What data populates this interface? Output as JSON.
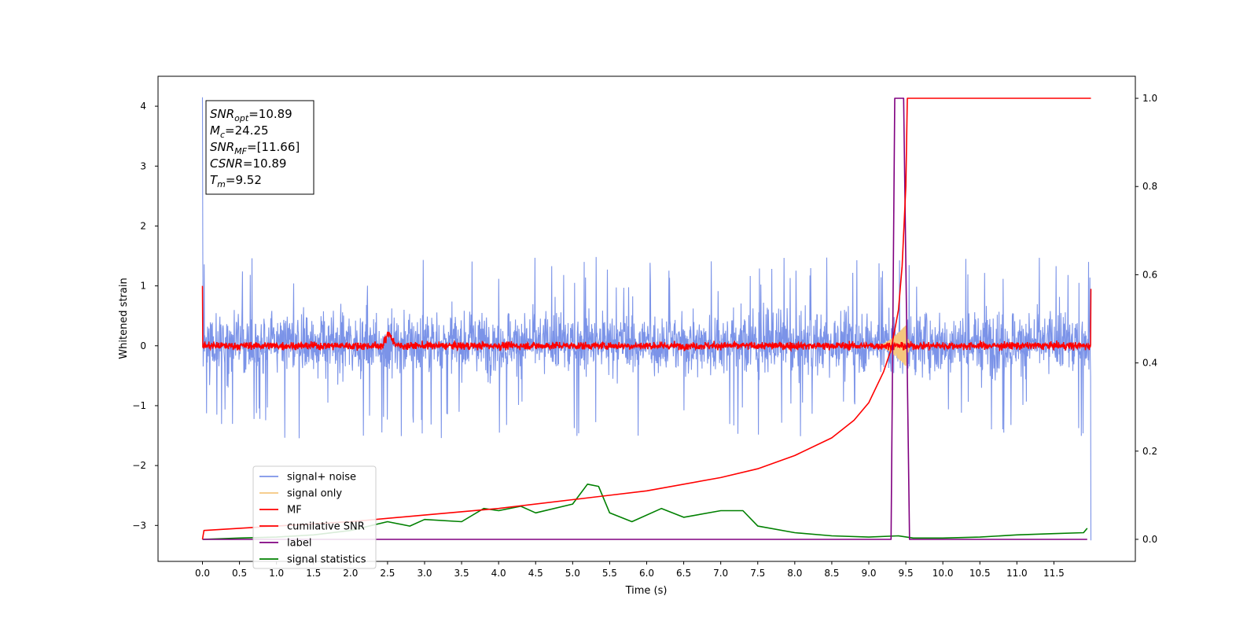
{
  "chart_data": {
    "type": "line",
    "xlabel": "Time (s)",
    "ylabel": "Whitened strain",
    "xlim": [
      -0.6,
      12.6
    ],
    "ylim": [
      -3.6,
      4.5
    ],
    "y2lim": [
      -0.05,
      1.05
    ],
    "x_ticks": [
      0.0,
      0.5,
      1.0,
      1.5,
      2.0,
      2.5,
      3.0,
      3.5,
      4.0,
      4.5,
      5.0,
      5.5,
      6.0,
      6.5,
      7.0,
      7.5,
      8.0,
      8.5,
      9.0,
      9.5,
      10.0,
      10.5,
      11.0,
      11.5
    ],
    "x_tick_labels": [
      "0.0",
      "0.5",
      "1.0",
      "1.5",
      "2.0",
      "2.5",
      "3.0",
      "3.5",
      "4.0",
      "4.5",
      "5.0",
      "5.5",
      "6.0",
      "6.5",
      "7.0",
      "7.5",
      "8.0",
      "8.5",
      "9.0",
      "9.5",
      "10.0",
      "10.5",
      "11.0",
      "11.5"
    ],
    "y_ticks": [
      -3,
      -2,
      -1,
      0,
      1,
      2,
      3,
      4
    ],
    "y_tick_labels": [
      "−3",
      "−2",
      "−1",
      "0",
      "1",
      "2",
      "3",
      "4"
    ],
    "y2_ticks": [
      0.0,
      0.2,
      0.4,
      0.6,
      0.8,
      1.0
    ],
    "y2_tick_labels": [
      "0.0",
      "0.2",
      "0.4",
      "0.6",
      "0.8",
      "1.0"
    ],
    "grid": false,
    "legend_position": "lower-left",
    "annotation": {
      "lines": [
        {
          "sym": "SNR",
          "sub": "opt",
          "val": "=10.89"
        },
        {
          "sym": "M",
          "sub": "c",
          "val": "=24.25"
        },
        {
          "sym": "SNR",
          "sub": "MF",
          "val": "=[11.66]"
        },
        {
          "sym": "CSNR",
          "sub": "",
          "val": "=10.89"
        },
        {
          "sym": "T",
          "sub": "m",
          "val": "=9.52"
        }
      ]
    },
    "series": [
      {
        "name": "signal+ noise",
        "color": "#7b93e8",
        "axis": "left",
        "style": "noise band",
        "x_range": [
          0.0,
          12.0
        ],
        "typical_range": [
          -0.75,
          0.85
        ],
        "peak_range": [
          -1.55,
          1.5
        ],
        "start_spike": 4.15,
        "end_value": -3.25
      },
      {
        "name": "signal only",
        "color": "#f5c77e",
        "axis": "left",
        "style": "chirp",
        "x_range": [
          9.1,
          9.55
        ],
        "max_amplitude": 0.42
      },
      {
        "name": "MF",
        "color": "#ff0000",
        "axis": "left",
        "style": "noise band",
        "x_range": [
          0.0,
          12.0
        ],
        "typical_range": [
          -0.1,
          0.1
        ],
        "peak_range": [
          -0.12,
          0.25
        ],
        "start_value": 1.0,
        "end_value": 0.95
      },
      {
        "name": "cumilative SNR",
        "color": "#ff0000",
        "axis": "right",
        "x": [
          0.0,
          0.02,
          1.0,
          2.0,
          3.0,
          4.0,
          5.0,
          6.0,
          7.0,
          7.5,
          8.0,
          8.5,
          8.8,
          9.0,
          9.2,
          9.3,
          9.4,
          9.45,
          9.5,
          9.52,
          12.0
        ],
        "values": [
          0.0,
          0.02,
          0.03,
          0.04,
          0.055,
          0.07,
          0.09,
          0.11,
          0.14,
          0.16,
          0.19,
          0.23,
          0.27,
          0.31,
          0.38,
          0.43,
          0.52,
          0.62,
          0.8,
          1.0,
          1.0
        ]
      },
      {
        "name": "label",
        "color": "#800080",
        "axis": "right",
        "x": [
          0.0,
          9.3,
          9.35,
          9.47,
          9.55,
          11.95
        ],
        "values": [
          0.0,
          0.0,
          1.0,
          1.0,
          0.0,
          0.0
        ]
      },
      {
        "name": "signal statistics",
        "color": "#008000",
        "axis": "right",
        "x": [
          0.0,
          0.5,
          1.0,
          1.5,
          2.0,
          2.5,
          2.8,
          3.0,
          3.5,
          3.8,
          4.0,
          4.3,
          4.5,
          5.0,
          5.2,
          5.35,
          5.5,
          5.8,
          6.2,
          6.5,
          7.0,
          7.3,
          7.5,
          8.0,
          8.5,
          9.0,
          9.4,
          9.6,
          10.0,
          10.5,
          11.0,
          11.5,
          11.9,
          11.95
        ],
        "values": [
          0.0,
          0.003,
          0.005,
          0.01,
          0.02,
          0.04,
          0.03,
          0.045,
          0.04,
          0.07,
          0.065,
          0.075,
          0.06,
          0.08,
          0.125,
          0.12,
          0.06,
          0.04,
          0.07,
          0.05,
          0.065,
          0.065,
          0.03,
          0.015,
          0.008,
          0.005,
          0.008,
          0.003,
          0.003,
          0.005,
          0.01,
          0.013,
          0.015,
          0.025
        ]
      }
    ]
  }
}
